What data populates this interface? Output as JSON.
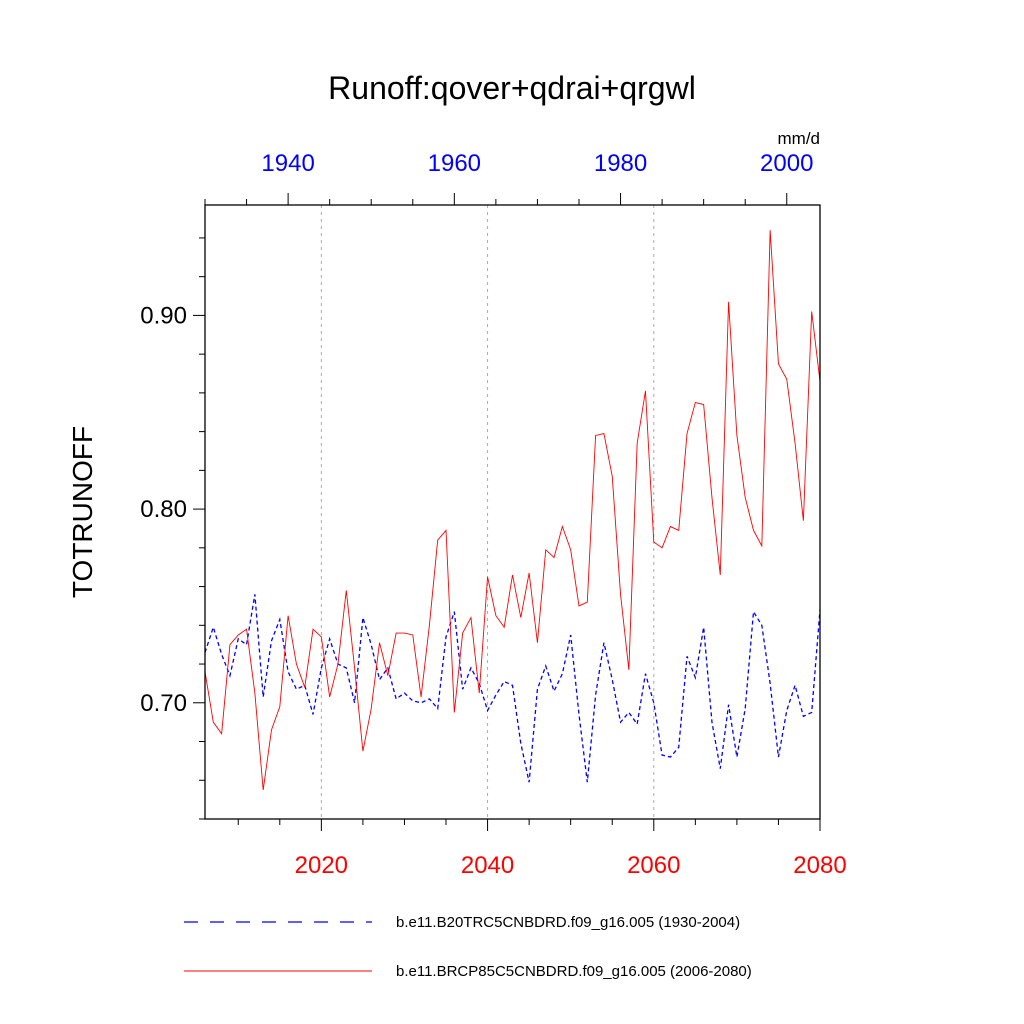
{
  "chart_data": {
    "type": "line",
    "title": "Runoff:qover+qdrai+qrgwl",
    "units_label": "mm/d",
    "ylabel": "TOTRUNOFF",
    "ylim": [
      0.64,
      0.957
    ],
    "y_ticks_major": [
      0.7,
      0.8,
      0.9
    ],
    "y_tick_labels": [
      "0.70",
      "0.80",
      "0.90"
    ],
    "bottom_axis": {
      "range": [
        2006,
        2080
      ],
      "ticks": [
        2020,
        2040,
        2060,
        2080
      ],
      "tick_labels": [
        "2020",
        "2040",
        "2060",
        "2080"
      ],
      "color": "#ff0000"
    },
    "top_axis": {
      "range": [
        1930,
        2004
      ],
      "ticks": [
        1940,
        1960,
        1980,
        2000
      ],
      "tick_labels": [
        "1940",
        "1960",
        "1980",
        "2000"
      ],
      "color": "#0000ff"
    },
    "vertical_gridlines_bottom_axis": [
      2020,
      2040,
      2060
    ],
    "legend_position": "bottom",
    "series": [
      {
        "name": "b.e11.B20TRC5CNBDRD.f09_g16.005 (1930-2004)",
        "axis": "top",
        "color": "#0000ff",
        "style": "dashed",
        "x": [
          1930,
          1931,
          1932,
          1933,
          1934,
          1935,
          1936,
          1937,
          1938,
          1939,
          1940,
          1941,
          1942,
          1943,
          1944,
          1945,
          1946,
          1947,
          1948,
          1949,
          1950,
          1951,
          1952,
          1953,
          1954,
          1955,
          1956,
          1957,
          1958,
          1959,
          1960,
          1961,
          1962,
          1963,
          1964,
          1965,
          1966,
          1967,
          1968,
          1969,
          1970,
          1971,
          1972,
          1973,
          1974,
          1975,
          1976,
          1977,
          1978,
          1979,
          1980,
          1981,
          1982,
          1983,
          1984,
          1985,
          1986,
          1987,
          1988,
          1989,
          1990,
          1991,
          1992,
          1993,
          1994,
          1995,
          1996,
          1997,
          1998,
          1999,
          2000,
          2001,
          2002,
          2003,
          2004
        ],
        "values": [
          0.726,
          0.739,
          0.725,
          0.714,
          0.733,
          0.73,
          0.756,
          0.703,
          0.732,
          0.743,
          0.716,
          0.707,
          0.709,
          0.694,
          0.718,
          0.733,
          0.72,
          0.718,
          0.7,
          0.744,
          0.73,
          0.712,
          0.718,
          0.702,
          0.705,
          0.701,
          0.7,
          0.702,
          0.697,
          0.734,
          0.747,
          0.707,
          0.718,
          0.71,
          0.696,
          0.704,
          0.711,
          0.709,
          0.679,
          0.659,
          0.707,
          0.719,
          0.706,
          0.715,
          0.735,
          0.694,
          0.659,
          0.704,
          0.731,
          0.712,
          0.69,
          0.695,
          0.689,
          0.715,
          0.7,
          0.673,
          0.672,
          0.677,
          0.724,
          0.713,
          0.739,
          0.69,
          0.666,
          0.699,
          0.672,
          0.697,
          0.747,
          0.74,
          0.71,
          0.672,
          0.696,
          0.709,
          0.693,
          0.695,
          0.748
        ]
      },
      {
        "name": "b.e11.BRCP85C5CNBDRD.f09_g16.005 (2006-2080)",
        "axis": "bottom",
        "color": "#ff0000",
        "style": "solid",
        "x": [
          2006,
          2007,
          2008,
          2009,
          2010,
          2011,
          2012,
          2013,
          2014,
          2015,
          2016,
          2017,
          2018,
          2019,
          2020,
          2021,
          2022,
          2023,
          2024,
          2025,
          2026,
          2027,
          2028,
          2029,
          2030,
          2031,
          2032,
          2033,
          2034,
          2035,
          2036,
          2037,
          2038,
          2039,
          2040,
          2041,
          2042,
          2043,
          2044,
          2045,
          2046,
          2047,
          2048,
          2049,
          2050,
          2051,
          2052,
          2053,
          2054,
          2055,
          2056,
          2057,
          2058,
          2059,
          2060,
          2061,
          2062,
          2063,
          2064,
          2065,
          2066,
          2067,
          2068,
          2069,
          2070,
          2071,
          2072,
          2073,
          2074,
          2075,
          2076,
          2077,
          2078,
          2079,
          2080
        ],
        "values": [
          0.716,
          0.69,
          0.684,
          0.73,
          0.735,
          0.738,
          0.705,
          0.655,
          0.686,
          0.698,
          0.745,
          0.72,
          0.708,
          0.738,
          0.734,
          0.703,
          0.72,
          0.758,
          0.718,
          0.675,
          0.697,
          0.731,
          0.714,
          0.736,
          0.736,
          0.735,
          0.703,
          0.74,
          0.784,
          0.789,
          0.695,
          0.736,
          0.744,
          0.705,
          0.765,
          0.745,
          0.739,
          0.766,
          0.744,
          0.767,
          0.731,
          0.779,
          0.775,
          0.791,
          0.779,
          0.75,
          0.752,
          0.838,
          0.839,
          0.817,
          0.756,
          0.717,
          0.834,
          0.861,
          0.783,
          0.78,
          0.791,
          0.789,
          0.839,
          0.855,
          0.854,
          0.806,
          0.766,
          0.907,
          0.838,
          0.806,
          0.789,
          0.781,
          0.944,
          0.875,
          0.867,
          0.834,
          0.794,
          0.902,
          0.866
        ]
      }
    ]
  }
}
